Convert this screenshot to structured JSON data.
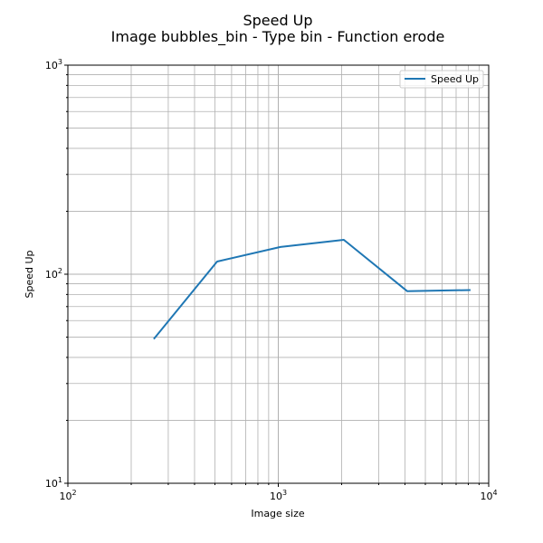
{
  "chart_data": {
    "type": "line",
    "title": "Speed Up",
    "subtitle": "Image bubbles_bin - Type bin - Function erode",
    "xlabel": "Image size",
    "ylabel": "Speed Up",
    "xscale": "log",
    "yscale": "log",
    "xlim": [
      100,
      10000
    ],
    "ylim": [
      10,
      1000
    ],
    "grid": true,
    "legend_position": "top-right",
    "x_tick_labels": [
      {
        "base": "10",
        "exp": "2"
      },
      {
        "base": "10",
        "exp": "3"
      },
      {
        "base": "10",
        "exp": "4"
      }
    ],
    "y_tick_labels": [
      {
        "base": "10",
        "exp": "1"
      },
      {
        "base": "10",
        "exp": "2"
      },
      {
        "base": "10",
        "exp": "3"
      }
    ],
    "series": [
      {
        "name": "Speed Up",
        "color": "#1f77b4",
        "x": [
          256,
          512,
          1024,
          2048,
          4096,
          8192
        ],
        "y": [
          49,
          115,
          135,
          146,
          83,
          84
        ]
      }
    ]
  }
}
